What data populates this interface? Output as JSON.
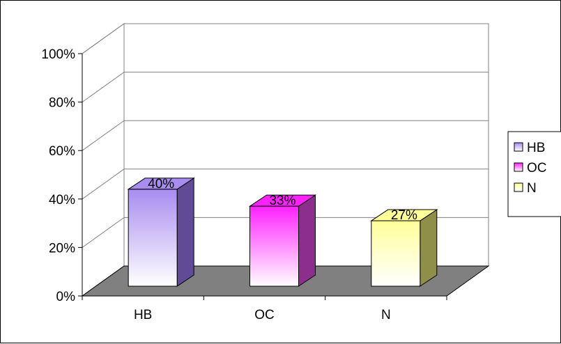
{
  "chart_data": {
    "type": "bar",
    "style": "3d-column",
    "categories": [
      "HB",
      "OC",
      "N"
    ],
    "values": [
      40,
      33,
      27
    ],
    "data_labels": [
      "40%",
      "33%",
      "27%"
    ],
    "title": "",
    "xlabel": "",
    "ylabel": "",
    "ylim": [
      0,
      100
    ],
    "y_ticks": [
      "0%",
      "20%",
      "40%",
      "60%",
      "80%",
      "100%"
    ],
    "grid": true,
    "legend_position": "right",
    "legend": [
      {
        "label": "HB",
        "color": "#9966ff"
      },
      {
        "label": "OC",
        "color": "#ff33ff"
      },
      {
        "label": "N",
        "color": "#ffff99"
      }
    ],
    "colors": {
      "HB": {
        "top": "#a88cf0",
        "bottom": "#ffffff",
        "side": "#5f4b96"
      },
      "OC": {
        "top": "#ff22ff",
        "bottom": "#ffffff",
        "side": "#8c2f8c"
      },
      "N": {
        "top": "#ffff99",
        "bottom": "#ffffff",
        "side": "#8f8f4a"
      },
      "floor": "#808080"
    }
  }
}
